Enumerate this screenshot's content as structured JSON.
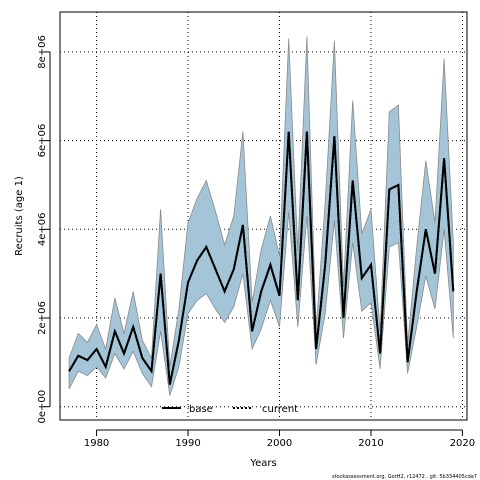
{
  "chart_data": {
    "type": "line",
    "title": "",
    "xlabel": "Years",
    "ylabel": "Recruits (age 1)",
    "xlim": [
      1976,
      2020.5
    ],
    "ylim": [
      -300000,
      8900000
    ],
    "x_ticks": [
      1980,
      1990,
      2000,
      2010,
      2020
    ],
    "x_tick_labels": [
      "1980",
      "1990",
      "2000",
      "2010",
      "2020"
    ],
    "y_ticks": [
      0,
      2000000,
      4000000,
      6000000,
      8000000
    ],
    "y_tick_labels": [
      "0e+00",
      "2e+06",
      "4e+06",
      "6e+06",
      "8e+06"
    ],
    "grid": true,
    "legend_position": "bottom-center",
    "colors": {
      "band_fill": "#a3c5d7",
      "band_stroke": "#8a8a8a",
      "line": "#000000"
    },
    "x": [
      1977,
      1978,
      1979,
      1980,
      1981,
      1982,
      1983,
      1984,
      1985,
      1986,
      1987,
      1988,
      1989,
      1990,
      1991,
      1992,
      1993,
      1994,
      1995,
      1996,
      1997,
      1998,
      1999,
      2000,
      2001,
      2002,
      2003,
      2004,
      2005,
      2006,
      2007,
      2008,
      2009,
      2010,
      2011,
      2012,
      2013,
      2014,
      2015,
      2016,
      2017,
      2018,
      2019
    ],
    "series": [
      {
        "name": "base",
        "style": "solid",
        "values": [
          800000,
          1150000,
          1050000,
          1300000,
          900000,
          1700000,
          1200000,
          1800000,
          1100000,
          800000,
          3000000,
          500000,
          1500000,
          2800000,
          3300000,
          3600000,
          3100000,
          2600000,
          3100000,
          4100000,
          1700000,
          2600000,
          3200000,
          2500000,
          6200000,
          2400000,
          6200000,
          1300000,
          3200000,
          6100000,
          2000000,
          5100000,
          2900000,
          3200000,
          1200000,
          4900000,
          5000000,
          1000000,
          2600000,
          4000000,
          3000000,
          5600000,
          2600000
        ]
      },
      {
        "name": "current",
        "style": "dotted",
        "values": [
          800000,
          1150000,
          1050000,
          1300000,
          900000,
          1700000,
          1200000,
          1800000,
          1100000,
          800000,
          3000000,
          500000,
          1500000,
          2800000,
          3300000,
          3600000,
          3100000,
          2600000,
          3100000,
          4100000,
          1700000,
          2600000,
          3200000,
          2500000,
          6200000,
          2400000,
          6200000,
          1300000,
          3200000,
          6100000,
          2000000,
          5100000,
          2900000,
          3200000,
          1200000,
          4900000,
          5000000,
          1000000,
          2600000,
          4000000,
          3000000,
          5600000,
          2600000
        ]
      }
    ],
    "band": {
      "lower": [
        400000,
        800000,
        700000,
        900000,
        650000,
        1200000,
        850000,
        1250000,
        750000,
        450000,
        1700000,
        250000,
        900000,
        2100000,
        2400000,
        2550000,
        2200000,
        1900000,
        2250000,
        3000000,
        1300000,
        1750000,
        2400000,
        1800000,
        4400000,
        1800000,
        4300000,
        950000,
        2100000,
        4200000,
        1550000,
        3700000,
        2150000,
        2350000,
        850000,
        3600000,
        3700000,
        750000,
        1800000,
        2950000,
        2200000,
        4000000,
        1550000
      ],
      "upper": [
        1100000,
        1650000,
        1450000,
        1850000,
        1300000,
        2450000,
        1650000,
        2600000,
        1500000,
        1100000,
        4450000,
        900000,
        2200000,
        4150000,
        4700000,
        5100000,
        4400000,
        3650000,
        4300000,
        6200000,
        2350000,
        3550000,
        4300000,
        3400000,
        8300000,
        3500000,
        8350000,
        1750000,
        4600000,
        8250000,
        2700000,
        6900000,
        3900000,
        4450000,
        1700000,
        6650000,
        6800000,
        1400000,
        3600000,
        5550000,
        4150000,
        7850000,
        3700000
      ]
    },
    "footer": "stockassessment.org, GorH2, r12472 , git: 5b334405cda7"
  }
}
